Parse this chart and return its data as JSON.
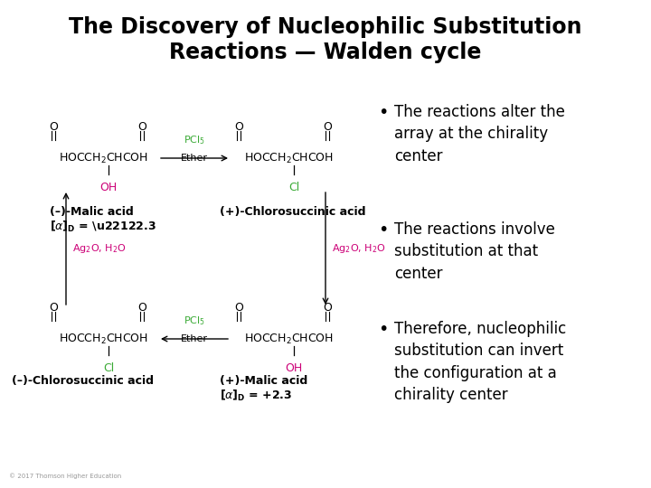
{
  "title_line1": "The Discovery of Nucleophilic Substitution",
  "title_line2": "Reactions — Walden cycle",
  "title_fontsize": 17,
  "background_color": "#ffffff",
  "bullet_points": [
    "The reactions alter the\narray at the chirality\ncenter",
    "The reactions involve\nsubstitution at that\ncenter",
    "Therefore, nucleophilic\nsubstitution can invert\nthe configuration at a\nchirality center"
  ],
  "bullet_fontsize": 12,
  "copyright": "© 2017 Thomson Higher Education",
  "green_color": "#3aaa35",
  "magenta_color": "#cc0077",
  "black_color": "#000000",
  "gray_color": "#999999",
  "struct_fs": 9,
  "label_fs": 9,
  "reagent_fs": 8
}
